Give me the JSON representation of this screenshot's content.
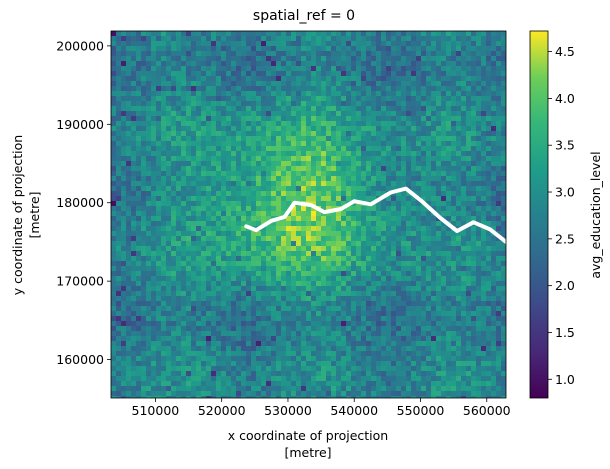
{
  "chart_data": {
    "type": "heatmap",
    "title": "spatial_ref = 0",
    "xlabel": "x coordinate of projection",
    "xunit": "[metre]",
    "ylabel": "y coordinate of projection",
    "yunit": "[metre]",
    "colorbar_label": "avg_education_level",
    "colormap": "viridis",
    "xlim": [
      503300,
      562900
    ],
    "ylim": [
      155100,
      201900
    ],
    "clim": [
      0.8,
      4.72
    ],
    "x_ticks": [
      510000,
      520000,
      530000,
      540000,
      550000,
      560000
    ],
    "y_ticks": [
      160000,
      170000,
      180000,
      190000,
      200000
    ],
    "cbar_ticks": [
      1.0,
      1.5,
      2.0,
      2.5,
      3.0,
      3.5,
      4.0,
      4.5
    ],
    "grid": false,
    "legend": "none",
    "values_summary": {
      "background_level": 2.7,
      "central_high": 4.4,
      "central_high_at": [
        531000,
        180500
      ]
    },
    "river_thames": [
      [
        523700,
        177000
      ],
      [
        525200,
        176500
      ],
      [
        527500,
        177700
      ],
      [
        529500,
        178200
      ],
      [
        531000,
        180000
      ],
      [
        533500,
        179700
      ],
      [
        535500,
        178800
      ],
      [
        538000,
        179200
      ],
      [
        540000,
        180200
      ],
      [
        542500,
        179800
      ],
      [
        545500,
        181300
      ],
      [
        547800,
        181800
      ],
      [
        550200,
        180200
      ],
      [
        552800,
        178200
      ],
      [
        555500,
        176400
      ],
      [
        558000,
        177500
      ],
      [
        560500,
        176600
      ],
      [
        562900,
        175000
      ]
    ]
  }
}
